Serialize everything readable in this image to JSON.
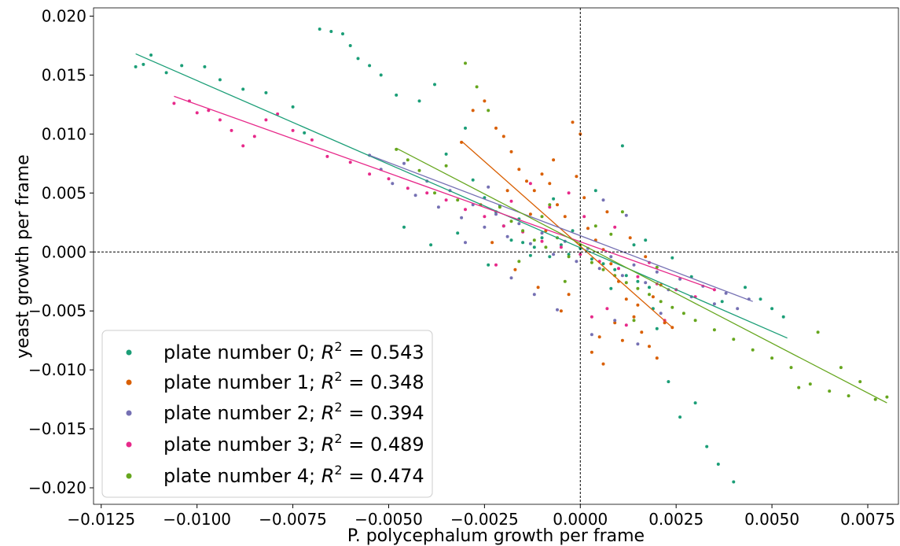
{
  "chart_data": {
    "type": "scatter",
    "title": "",
    "xlabel": "P. polycephalum growth per frame",
    "ylabel": "yeast growth per frame",
    "xlim": [
      -0.0127,
      0.0083
    ],
    "ylim": [
      -0.0214,
      0.0207
    ],
    "x_ticks": [
      -0.0125,
      -0.01,
      -0.0075,
      -0.005,
      -0.0025,
      0.0,
      0.0025,
      0.005,
      0.0075
    ],
    "x_tick_labels": [
      "−0.0125",
      "−0.0100",
      "−0.0075",
      "−0.0050",
      "−0.0025",
      "0.0000",
      "0.0025",
      "0.0050",
      "0.0075"
    ],
    "y_ticks": [
      -0.02,
      -0.015,
      -0.01,
      -0.005,
      0.0,
      0.005,
      0.01,
      0.015,
      0.02
    ],
    "y_tick_labels": [
      "−0.020",
      "−0.015",
      "−0.010",
      "−0.005",
      "0.000",
      "0.005",
      "0.010",
      "0.015",
      "0.020"
    ],
    "reference_lines": {
      "x": 0.0,
      "y": 0.0,
      "style": "dashed"
    },
    "grid": false,
    "legend_position": "bottom-left",
    "series": [
      {
        "name": "plate number 0; R² = 0.543",
        "label_prefix": "plate number 0; ",
        "r2_value": "0.543",
        "color": "#1b9e77",
        "fit_line": {
          "x": [
            -0.0116,
            0.0054
          ],
          "y": [
            0.0168,
            -0.0073
          ]
        },
        "points": [
          [
            -0.0116,
            0.0157
          ],
          [
            -0.0114,
            0.0159
          ],
          [
            -0.0112,
            0.0167
          ],
          [
            -0.0108,
            0.0152
          ],
          [
            -0.0104,
            0.0158
          ],
          [
            -0.0098,
            0.0157
          ],
          [
            -0.0094,
            0.0146
          ],
          [
            -0.0088,
            0.0138
          ],
          [
            -0.0082,
            0.0135
          ],
          [
            -0.0075,
            0.0123
          ],
          [
            -0.0072,
            0.0101
          ],
          [
            -0.0068,
            0.0189
          ],
          [
            -0.0065,
            0.0187
          ],
          [
            -0.0062,
            0.0185
          ],
          [
            -0.006,
            0.0175
          ],
          [
            -0.0058,
            0.0164
          ],
          [
            -0.0055,
            0.0158
          ],
          [
            -0.0052,
            0.015
          ],
          [
            -0.0048,
            0.0133
          ],
          [
            -0.0042,
            0.0128
          ],
          [
            -0.0038,
            0.0142
          ],
          [
            -0.0035,
            0.0083
          ],
          [
            -0.003,
            0.0105
          ],
          [
            -0.0028,
            0.0061
          ],
          [
            -0.0025,
            0.0046
          ],
          [
            -0.0022,
            0.0034
          ],
          [
            -0.002,
            0.0022
          ],
          [
            -0.0018,
            0.001
          ],
          [
            -0.0015,
            0.0008
          ],
          [
            -0.0012,
            0.0004
          ],
          [
            -0.001,
            0.0012
          ],
          [
            -0.0008,
            -0.0004
          ],
          [
            -0.0005,
            0.0006
          ],
          [
            -0.0003,
            -0.0002
          ],
          [
            0.0,
            0.0003
          ],
          [
            0.0003,
            -0.0006
          ],
          [
            0.0006,
            -0.001
          ],
          [
            0.0009,
            -0.0015
          ],
          [
            0.0012,
            -0.002
          ],
          [
            0.0015,
            -0.0025
          ],
          [
            0.0018,
            -0.003
          ],
          [
            0.002,
            -0.0065
          ],
          [
            0.0023,
            -0.011
          ],
          [
            0.0026,
            -0.014
          ],
          [
            0.003,
            -0.0128
          ],
          [
            0.0033,
            -0.0165
          ],
          [
            0.0036,
            -0.018
          ],
          [
            0.004,
            -0.0195
          ],
          [
            0.0043,
            -0.003
          ],
          [
            0.0047,
            -0.004
          ],
          [
            0.005,
            -0.0048
          ],
          [
            0.0053,
            -0.0055
          ],
          [
            -0.0046,
            0.0021
          ],
          [
            -0.0039,
            0.0006
          ],
          [
            -0.0032,
            0.0016
          ],
          [
            -0.0024,
            -0.0011
          ],
          [
            -0.0016,
            0.0028
          ],
          [
            -0.0007,
            0.0045
          ],
          [
            0.0004,
            0.0052
          ],
          [
            0.0011,
            0.009
          ],
          [
            0.0017,
            0.001
          ],
          [
            0.0024,
            -0.0005
          ],
          [
            0.0029,
            -0.0021
          ],
          [
            0.0037,
            -0.0042
          ],
          [
            0.0019,
            -0.0048
          ],
          [
            0.0008,
            -0.0031
          ],
          [
            -0.0002,
            0.0018
          ],
          [
            -0.0013,
            -0.0003
          ],
          [
            -0.0021,
            0.0039
          ],
          [
            0.0014,
            0.0006
          ]
        ]
      },
      {
        "name": "plate number 1; R² = 0.348",
        "label_prefix": "plate number 1; ",
        "r2_value": "0.348",
        "color": "#d95f02",
        "fit_line": {
          "x": [
            -0.0031,
            0.0024
          ],
          "y": [
            0.0094,
            -0.0064
          ]
        },
        "points": [
          [
            -0.0031,
            0.0093
          ],
          [
            -0.0028,
            0.012
          ],
          [
            -0.0025,
            0.0128
          ],
          [
            -0.0022,
            0.0105
          ],
          [
            -0.002,
            0.0098
          ],
          [
            -0.0018,
            0.0085
          ],
          [
            -0.0016,
            0.007
          ],
          [
            -0.0014,
            0.006
          ],
          [
            -0.0012,
            0.0052
          ],
          [
            -0.001,
            0.0066
          ],
          [
            -0.0008,
            0.0058
          ],
          [
            -0.0006,
            0.004
          ],
          [
            -0.0004,
            0.003
          ],
          [
            -0.0002,
            0.011
          ],
          [
            0.0,
            0.01
          ],
          [
            0.0002,
            0.002
          ],
          [
            0.0004,
            0.001
          ],
          [
            0.0006,
            0.0002
          ],
          [
            0.0008,
            -0.001
          ],
          [
            0.001,
            -0.0025
          ],
          [
            0.0012,
            -0.004
          ],
          [
            0.0014,
            -0.0055
          ],
          [
            0.0016,
            -0.0068
          ],
          [
            0.0018,
            -0.008
          ],
          [
            0.002,
            -0.009
          ],
          [
            0.0022,
            -0.006
          ],
          [
            0.0024,
            -0.0064
          ],
          [
            0.0011,
            -0.0075
          ],
          [
            0.0006,
            -0.0095
          ],
          [
            0.0003,
            -0.0085
          ],
          [
            -0.0005,
            -0.005
          ],
          [
            -0.0011,
            -0.003
          ],
          [
            -0.0017,
            -0.0015
          ],
          [
            -0.0023,
            0.0008
          ],
          [
            -0.0026,
            0.004
          ],
          [
            -0.0013,
            0.0032
          ],
          [
            -0.0007,
            0.0078
          ],
          [
            0.0001,
            0.0046
          ],
          [
            0.0007,
            0.0034
          ],
          [
            0.0013,
            0.0012
          ],
          [
            0.0017,
            -0.0004
          ],
          [
            0.0009,
            -0.006
          ],
          [
            -0.0003,
            -0.0036
          ],
          [
            -0.0009,
            0.0018
          ],
          [
            0.0015,
            -0.0045
          ],
          [
            0.0021,
            -0.0028
          ],
          [
            -0.0019,
            0.0052
          ],
          [
            0.0005,
            -0.0072
          ],
          [
            0.0019,
            -0.0038
          ],
          [
            -0.0001,
            0.0064
          ]
        ]
      },
      {
        "name": "plate number 2; R² = 0.394",
        "label_prefix": "plate number 2; ",
        "r2_value": "0.394",
        "color": "#7570b3",
        "fit_line": {
          "x": [
            -0.0055,
            0.0045
          ],
          "y": [
            0.0082,
            -0.0042
          ]
        },
        "points": [
          [
            -0.0055,
            0.0082
          ],
          [
            -0.0052,
            0.007
          ],
          [
            -0.0049,
            0.0058
          ],
          [
            -0.0046,
            0.0075
          ],
          [
            -0.0043,
            0.0048
          ],
          [
            -0.004,
            0.006
          ],
          [
            -0.0037,
            0.0038
          ],
          [
            -0.0034,
            0.0052
          ],
          [
            -0.0031,
            0.0029
          ],
          [
            -0.0028,
            0.004
          ],
          [
            -0.0025,
            0.0021
          ],
          [
            -0.0022,
            0.0032
          ],
          [
            -0.0019,
            0.0013
          ],
          [
            -0.0016,
            0.0024
          ],
          [
            -0.0013,
            0.0007
          ],
          [
            -0.001,
            0.0016
          ],
          [
            -0.0007,
            -0.0002
          ],
          [
            -0.0004,
            0.0009
          ],
          [
            -0.0001,
            -0.0008
          ],
          [
            0.0002,
            0.0003
          ],
          [
            0.0005,
            -0.0014
          ],
          [
            0.0008,
            -0.0004
          ],
          [
            0.0011,
            -0.002
          ],
          [
            0.0014,
            -0.0011
          ],
          [
            0.0017,
            -0.0026
          ],
          [
            0.002,
            -0.0017
          ],
          [
            0.0023,
            -0.0032
          ],
          [
            0.0026,
            -0.0023
          ],
          [
            0.0029,
            -0.0038
          ],
          [
            0.0032,
            -0.0029
          ],
          [
            0.0035,
            -0.0044
          ],
          [
            0.0038,
            -0.0035
          ],
          [
            0.0041,
            -0.0048
          ],
          [
            0.0044,
            -0.004
          ],
          [
            0.0009,
            -0.0058
          ],
          [
            0.0003,
            -0.007
          ],
          [
            -0.0006,
            -0.0049
          ],
          [
            -0.0012,
            -0.0036
          ],
          [
            -0.0018,
            -0.0022
          ],
          [
            0.0015,
            -0.0078
          ],
          [
            0.0021,
            -0.0052
          ],
          [
            -0.0024,
            0.0055
          ],
          [
            -0.003,
            0.0008
          ],
          [
            0.0006,
            0.0044
          ],
          [
            0.0012,
            0.0031
          ]
        ]
      },
      {
        "name": "plate number 3; R² = 0.489",
        "label_prefix": "plate number 3; ",
        "r2_value": "0.489",
        "color": "#e7298a",
        "fit_line": {
          "x": [
            -0.0106,
            0.0035
          ],
          "y": [
            0.0132,
            -0.0032
          ]
        },
        "points": [
          [
            -0.0106,
            0.0126
          ],
          [
            -0.0102,
            0.0128
          ],
          [
            -0.01,
            0.0118
          ],
          [
            -0.0097,
            0.012
          ],
          [
            -0.0094,
            0.0112
          ],
          [
            -0.0091,
            0.0103
          ],
          [
            -0.0088,
            0.009
          ],
          [
            -0.0085,
            0.0098
          ],
          [
            -0.0082,
            0.0112
          ],
          [
            -0.0079,
            0.0117
          ],
          [
            -0.0075,
            0.0103
          ],
          [
            -0.007,
            0.0095
          ],
          [
            -0.0066,
            0.0081
          ],
          [
            -0.006,
            0.0076
          ],
          [
            -0.0055,
            0.0066
          ],
          [
            -0.005,
            0.0062
          ],
          [
            -0.0045,
            0.0054
          ],
          [
            -0.004,
            0.005
          ],
          [
            -0.0035,
            0.0044
          ],
          [
            -0.003,
            0.0036
          ],
          [
            -0.0025,
            0.003
          ],
          [
            -0.002,
            0.0022
          ],
          [
            -0.0015,
            0.0017
          ],
          [
            -0.001,
            0.0009
          ],
          [
            -0.0005,
            0.0004
          ],
          [
            0.0,
            -0.0002
          ],
          [
            0.0005,
            -0.0008
          ],
          [
            0.001,
            -0.0014
          ],
          [
            0.0015,
            -0.0021
          ],
          [
            0.002,
            -0.0027
          ],
          [
            0.0025,
            -0.0032
          ],
          [
            0.003,
            -0.0038
          ],
          [
            0.0035,
            -0.0032
          ],
          [
            0.0012,
            -0.0062
          ],
          [
            0.0007,
            -0.0048
          ],
          [
            -0.0003,
            0.005
          ],
          [
            -0.0008,
            0.0038
          ],
          [
            -0.0013,
            0.0058
          ],
          [
            0.0003,
            -0.0055
          ],
          [
            0.0018,
            -0.0009
          ],
          [
            -0.0018,
            0.0043
          ],
          [
            0.0009,
            0.0021
          ],
          [
            -0.0022,
            -0.0011
          ],
          [
            0.0022,
            -0.0058
          ],
          [
            0.0001,
            0.003
          ]
        ]
      },
      {
        "name": "plate number 4; R² = 0.474",
        "label_prefix": "plate number 4; ",
        "r2_value": "0.474",
        "color": "#66a61e",
        "fit_line": {
          "x": [
            -0.0048,
            0.008
          ],
          "y": [
            0.0088,
            -0.0128
          ]
        },
        "points": [
          [
            -0.0048,
            0.0087
          ],
          [
            -0.0045,
            0.0078
          ],
          [
            -0.0042,
            0.0069
          ],
          [
            -0.0038,
            0.005
          ],
          [
            -0.0035,
            0.0073
          ],
          [
            -0.0032,
            0.0044
          ],
          [
            -0.003,
            0.016
          ],
          [
            -0.0027,
            0.014
          ],
          [
            -0.0024,
            0.012
          ],
          [
            -0.0021,
            0.0038
          ],
          [
            -0.0018,
            0.0026
          ],
          [
            -0.0015,
            0.0018
          ],
          [
            -0.0012,
            0.001
          ],
          [
            -0.0009,
            0.0004
          ],
          [
            -0.0006,
            0.0012
          ],
          [
            -0.0003,
            -0.0004
          ],
          [
            0.0,
            0.0006
          ],
          [
            0.0003,
            -0.0009
          ],
          [
            0.0006,
            -0.0015
          ],
          [
            0.0009,
            -0.002
          ],
          [
            0.0012,
            -0.0026
          ],
          [
            0.0015,
            -0.0031
          ],
          [
            0.0018,
            -0.0036
          ],
          [
            0.0021,
            -0.0042
          ],
          [
            0.0024,
            -0.0047
          ],
          [
            0.0027,
            -0.0052
          ],
          [
            0.003,
            -0.0058
          ],
          [
            0.0035,
            -0.0066
          ],
          [
            0.004,
            -0.0074
          ],
          [
            0.0045,
            -0.0083
          ],
          [
            0.005,
            -0.009
          ],
          [
            0.0055,
            -0.0098
          ],
          [
            0.006,
            -0.0112
          ],
          [
            0.0065,
            -0.0118
          ],
          [
            0.0068,
            -0.0098
          ],
          [
            0.007,
            -0.0122
          ],
          [
            0.0073,
            -0.011
          ],
          [
            0.0077,
            -0.0125
          ],
          [
            0.008,
            -0.0123
          ],
          [
            0.0057,
            -0.0115
          ],
          [
            0.0062,
            -0.0068
          ],
          [
            -0.001,
            0.003
          ],
          [
            -0.0004,
            -0.0025
          ],
          [
            0.0008,
            0.0015
          ],
          [
            0.0014,
            -0.0058
          ],
          [
            -0.0016,
            -0.0008
          ],
          [
            0.0004,
            0.0022
          ],
          [
            -0.0008,
            0.004
          ],
          [
            0.002,
            -0.0013
          ],
          [
            0.0011,
            0.0034
          ]
        ]
      }
    ]
  }
}
